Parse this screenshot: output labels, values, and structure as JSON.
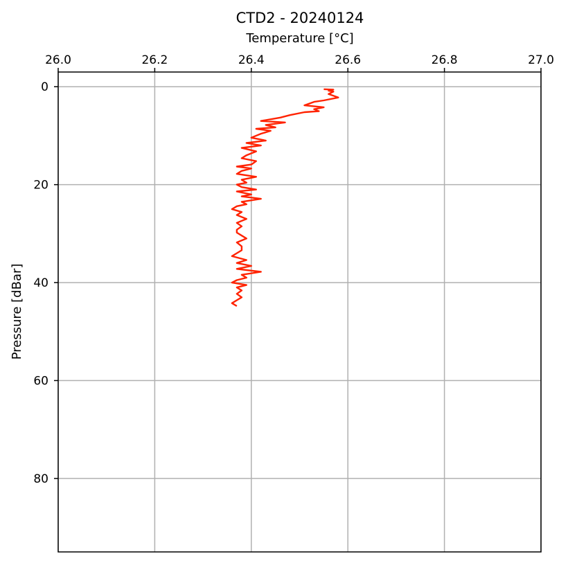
{
  "chart_data": {
    "type": "line",
    "title": "CTD2 - 20240124",
    "xlabel": "Temperature [°C]",
    "ylabel": "Pressure [dBar]",
    "xlim": [
      26.0,
      27.0
    ],
    "ylim": [
      95,
      -3
    ],
    "y_inverted": true,
    "x_axis_position": "top",
    "grid": true,
    "xticks": [
      26.0,
      26.2,
      26.4,
      26.6,
      26.8,
      27.0
    ],
    "xtick_labels": [
      "26.0",
      "26.2",
      "26.4",
      "26.6",
      "26.8",
      "27.0"
    ],
    "yticks": [
      0,
      20,
      40,
      60,
      80
    ],
    "ytick_labels": [
      "0",
      "20",
      "40",
      "60",
      "80"
    ],
    "series": [
      {
        "color": "#ff2200",
        "x": [
          26.55,
          26.57,
          26.56,
          26.57,
          26.56,
          26.58,
          26.55,
          26.53,
          26.51,
          26.55,
          26.53,
          26.54,
          26.51,
          26.48,
          26.46,
          26.42,
          26.47,
          26.43,
          26.45,
          26.41,
          26.44,
          26.42,
          26.4,
          26.43,
          26.39,
          26.42,
          26.38,
          26.41,
          26.39,
          26.38,
          26.41,
          26.4,
          26.37,
          26.4,
          26.38,
          26.37,
          26.41,
          26.38,
          26.39,
          26.37,
          26.38,
          26.41,
          26.37,
          26.4,
          26.38,
          26.42,
          26.38,
          26.39,
          26.37,
          26.36,
          26.38,
          26.37,
          26.39,
          26.37,
          26.38,
          26.37,
          26.37,
          26.38,
          26.39,
          26.37,
          26.38,
          26.38,
          26.37,
          26.36,
          26.39,
          26.37,
          26.4,
          26.37,
          26.42,
          26.38,
          26.39,
          26.37,
          26.36,
          26.39,
          26.37,
          26.38,
          26.37,
          26.38,
          26.37,
          26.36,
          26.37
        ],
        "y": [
          0.5,
          0.6,
          0.8,
          1.0,
          1.5,
          2.2,
          2.8,
          3.1,
          3.8,
          4.2,
          4.6,
          5.0,
          5.2,
          5.8,
          6.3,
          7.0,
          7.3,
          7.8,
          8.3,
          8.6,
          9.0,
          9.6,
          10.4,
          11.0,
          11.5,
          12.0,
          12.5,
          13.2,
          14.0,
          14.6,
          15.2,
          15.9,
          16.3,
          16.7,
          17.2,
          17.8,
          18.4,
          19.0,
          19.6,
          20.0,
          20.5,
          21.0,
          21.4,
          22.0,
          22.4,
          22.9,
          23.5,
          24.0,
          24.4,
          25.0,
          25.6,
          26.2,
          27.0,
          27.8,
          28.5,
          29.2,
          29.8,
          30.4,
          31.0,
          31.8,
          32.6,
          33.4,
          34.0,
          34.6,
          35.4,
          36.0,
          36.6,
          37.2,
          37.8,
          38.4,
          39.0,
          39.5,
          40.0,
          40.5,
          41.0,
          41.6,
          42.3,
          43.0,
          43.6,
          44.2,
          44.8
        ]
      }
    ]
  }
}
